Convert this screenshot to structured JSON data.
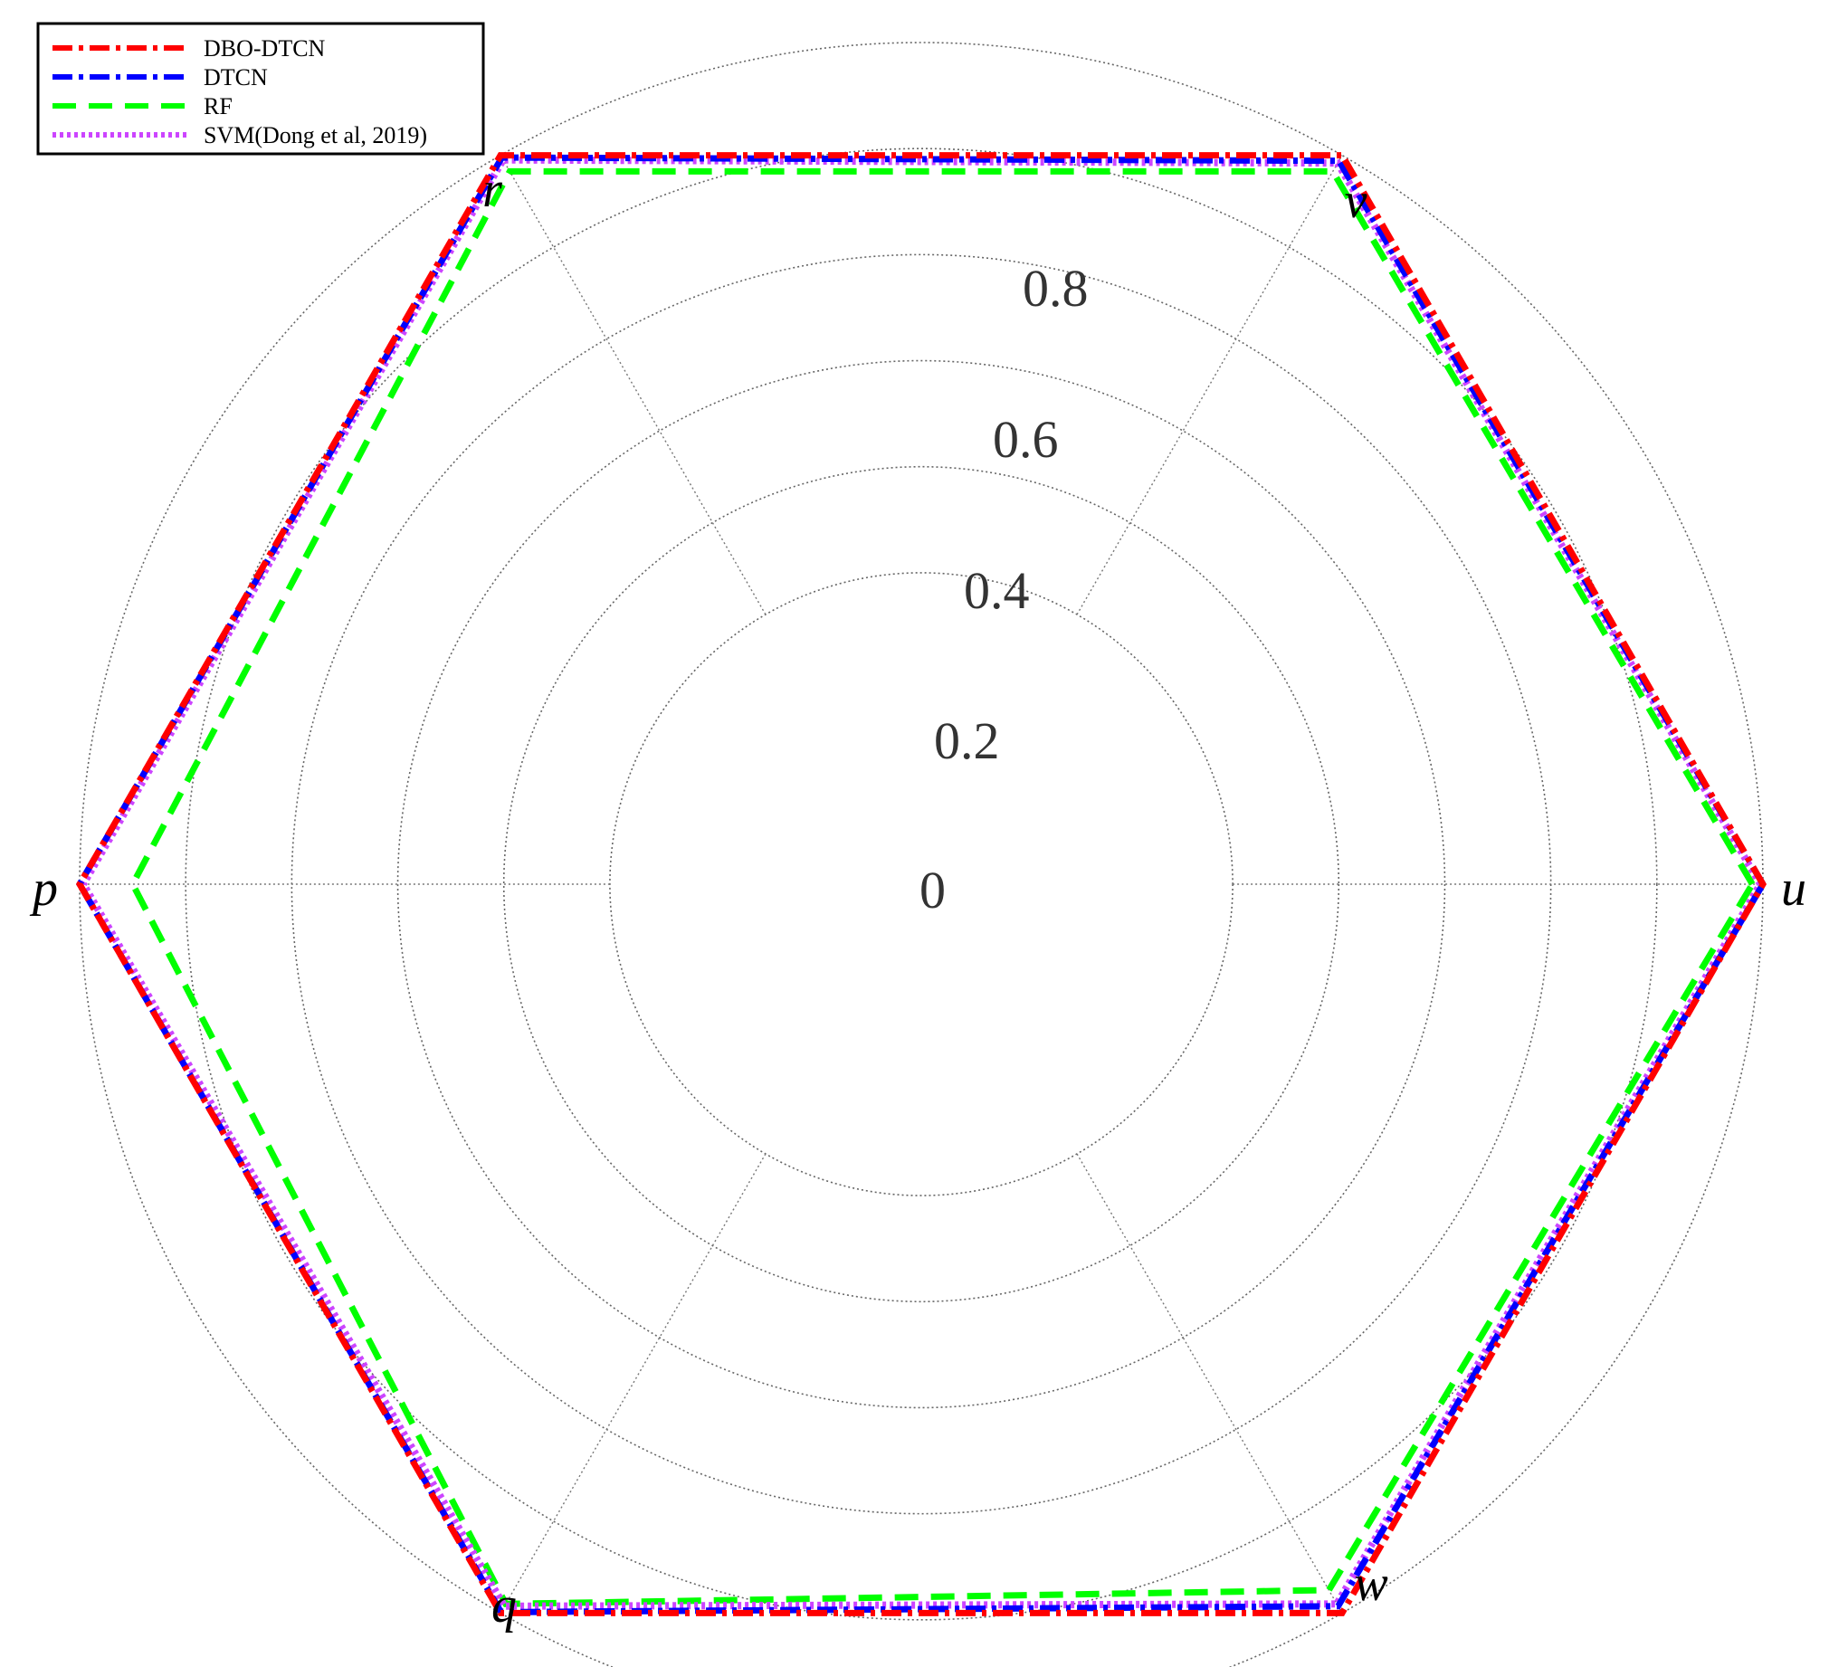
{
  "chart_data": {
    "type": "radar",
    "axes": [
      "u",
      "v",
      "r",
      "p",
      "q",
      "w"
    ],
    "r_ticks": [
      "0",
      "0.2",
      "0.4",
      "0.6",
      "0.8"
    ],
    "rlim": [
      0,
      1
    ],
    "grid": true,
    "legend_position": "top-left",
    "series": [
      {
        "name": "DBO-DTCN",
        "color": "#ff0000",
        "dash": "dashdot",
        "values": [
          1.0,
          1.0,
          1.0,
          1.0,
          1.0,
          1.0
        ]
      },
      {
        "name": "DTCN",
        "color": "#0000ff",
        "dash": "dashdot",
        "values": [
          1.0,
          0.988,
          0.995,
          1.0,
          0.998,
          0.985
        ]
      },
      {
        "name": "RF",
        "color": "#00ff00",
        "dash": "dashed",
        "values": [
          0.98,
          0.965,
          0.965,
          0.9,
          0.98,
          0.95
        ]
      },
      {
        "name": "SVM(Dong et al, 2019)",
        "color": "#cc44ff",
        "dash": "dotted",
        "values": [
          0.995,
          0.983,
          0.99,
          0.993,
          0.985,
          0.98
        ]
      }
    ]
  }
}
